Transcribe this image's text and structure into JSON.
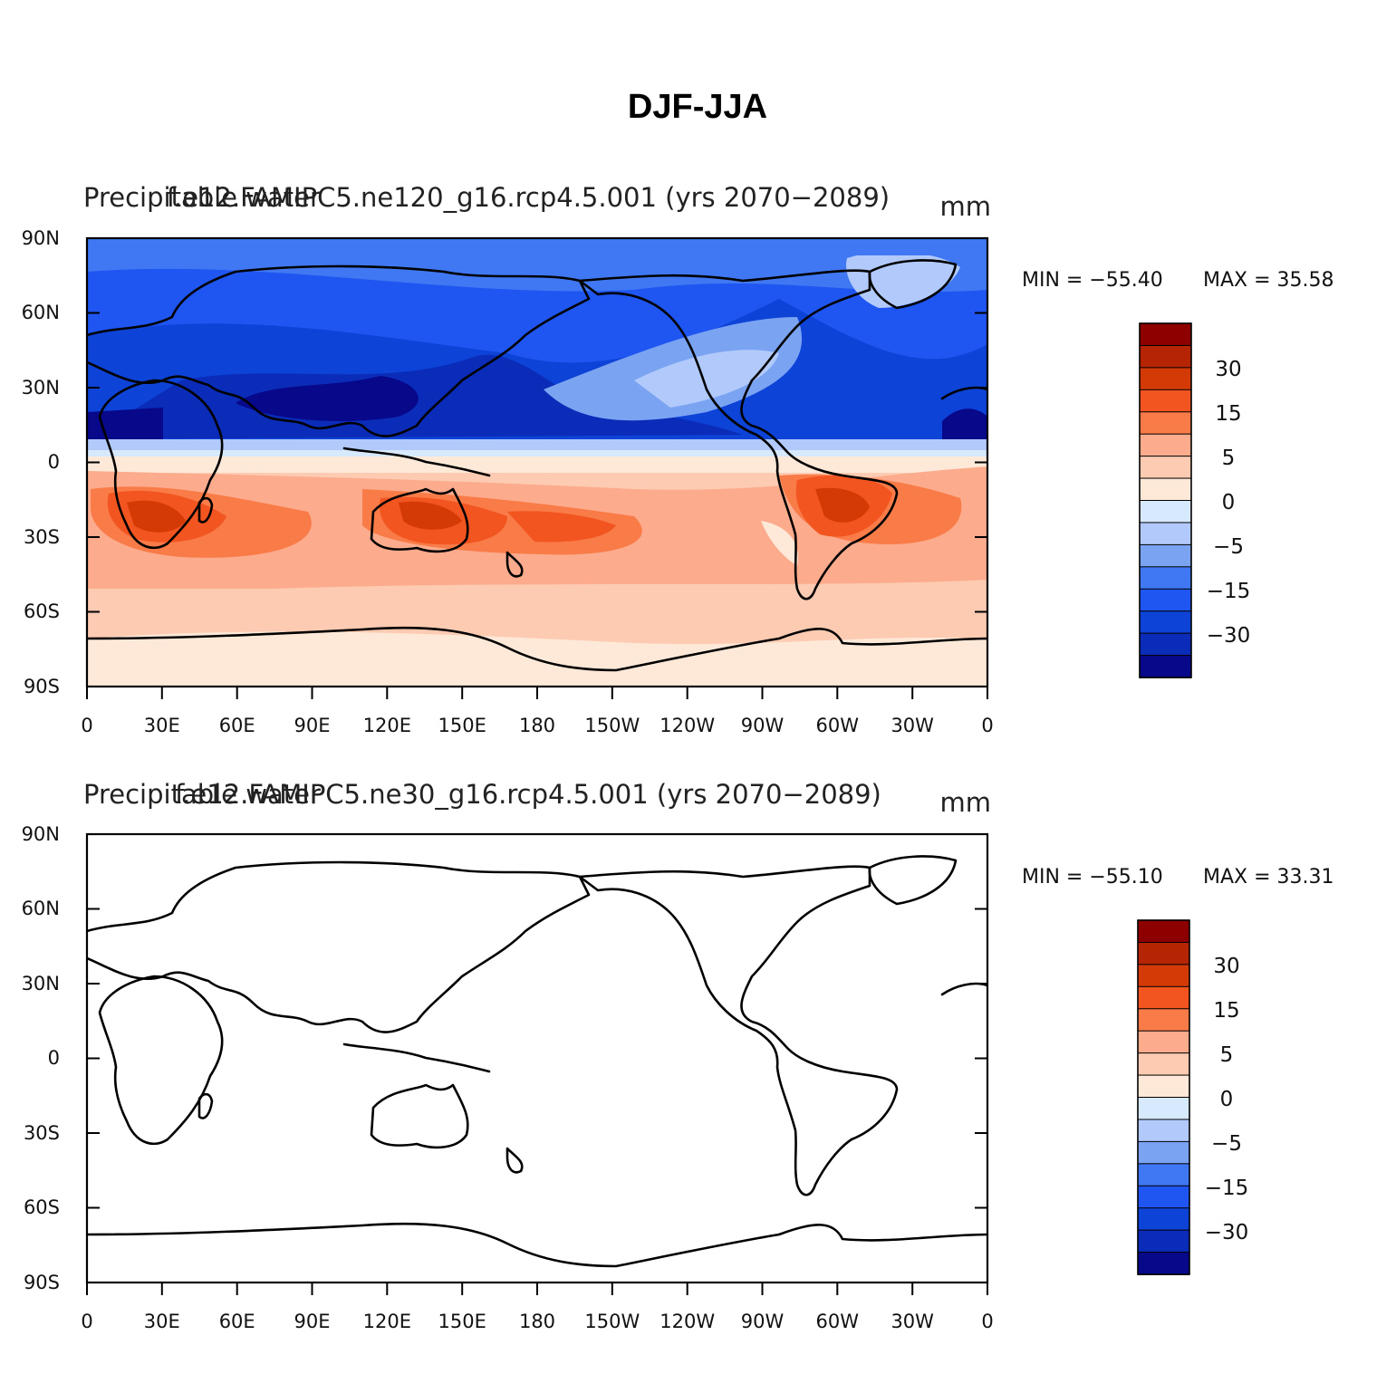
{
  "figure": {
    "title": "DJF-JJA"
  },
  "colors": {
    "levels": [
      "#08088a",
      "#0a2cb8",
      "#0d43d6",
      "#1f55f0",
      "#3f78f2",
      "#7aa3f2",
      "#b2cafb",
      "#d7e9fd",
      "#fee9d8",
      "#fdcbb2",
      "#fcab8c",
      "#f97b48",
      "#f35521",
      "#d43a06",
      "#b52504",
      "#8e0000"
    ]
  },
  "panels": [
    {
      "id": "ne120",
      "left_title": "Precipitable water",
      "center_title": "f.e12.FAMIPC5.ne120_g16.rcp4.5.001 (yrs 2070−2089)",
      "units": "mm",
      "min_text": "MIN = −55.40",
      "max_text": "MAX =   35.58",
      "cb_labels": [
        "30",
        "15",
        "5",
        "0",
        "−5",
        "−15",
        "−30"
      ]
    },
    {
      "id": "ne30",
      "left_title": "Precipitable water",
      "center_title": "f.e12.FAMIPC5.ne30_g16.rcp4.5.001 (yrs 2070−2089)",
      "units": "mm",
      "min_text": "MIN = −55.10",
      "max_text": "MAX =   33.31",
      "cb_labels": [
        "30",
        "15",
        "5",
        "0",
        "−5",
        "−15",
        "−30"
      ]
    }
  ],
  "lat_labels": [
    "90N",
    "60N",
    "30N",
    "0",
    "30S",
    "60S",
    "90S"
  ],
  "lon_labels": [
    "0",
    "30E",
    "60E",
    "90E",
    "120E",
    "150E",
    "180",
    "150W",
    "120W",
    "90W",
    "60W",
    "30W",
    "0"
  ],
  "coastline_icon": "coastline-outline"
}
